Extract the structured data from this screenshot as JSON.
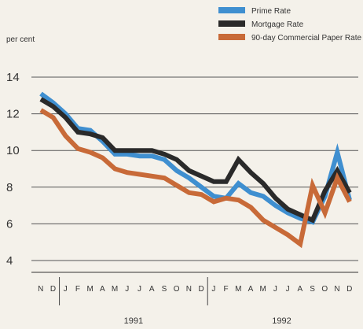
{
  "chart_data": {
    "type": "line",
    "title": "",
    "ylabel": "per cent",
    "xlabel": "",
    "ylim": [
      4,
      14
    ],
    "yticks": [
      4,
      6,
      8,
      10,
      12,
      14
    ],
    "grid": true,
    "legend_position": "top-right",
    "x": [
      "N",
      "D",
      "J",
      "F",
      "M",
      "A",
      "M",
      "J",
      "J",
      "A",
      "S",
      "O",
      "N",
      "D",
      "J",
      "F",
      "M",
      "A",
      "M",
      "J",
      "J",
      "A",
      "S",
      "O",
      "N",
      "D"
    ],
    "year_groups": [
      {
        "label": "1991",
        "start": 2,
        "end": 13
      },
      {
        "label": "1992",
        "start": 14,
        "end": 25
      }
    ],
    "series": [
      {
        "name": "Prime Rate",
        "color": "#3f8fd0",
        "values": [
          13.1,
          12.6,
          12.0,
          11.2,
          11.1,
          10.5,
          9.8,
          9.8,
          9.7,
          9.7,
          9.5,
          8.9,
          8.5,
          8.0,
          7.5,
          7.4,
          8.2,
          7.7,
          7.5,
          7.0,
          6.6,
          6.3,
          6.1,
          7.5,
          9.9,
          7.3
        ]
      },
      {
        "name": "Mortgage Rate",
        "color": "#2a2a2a",
        "values": [
          12.8,
          12.4,
          11.8,
          11.0,
          10.9,
          10.7,
          10.0,
          10.0,
          10.0,
          10.0,
          9.8,
          9.5,
          8.9,
          8.6,
          8.3,
          8.3,
          9.5,
          8.8,
          8.2,
          7.4,
          6.8,
          6.5,
          6.2,
          7.8,
          8.9,
          7.7
        ]
      },
      {
        "name": "90-day Commercial Paper Rate",
        "color": "#c86a38",
        "values": [
          12.2,
          11.8,
          10.8,
          10.1,
          9.9,
          9.6,
          9.0,
          8.8,
          8.7,
          8.6,
          8.5,
          8.1,
          7.7,
          7.6,
          7.2,
          7.4,
          7.3,
          6.9,
          6.2,
          5.8,
          5.4,
          4.9,
          8.1,
          6.6,
          8.5,
          7.2
        ]
      }
    ]
  }
}
